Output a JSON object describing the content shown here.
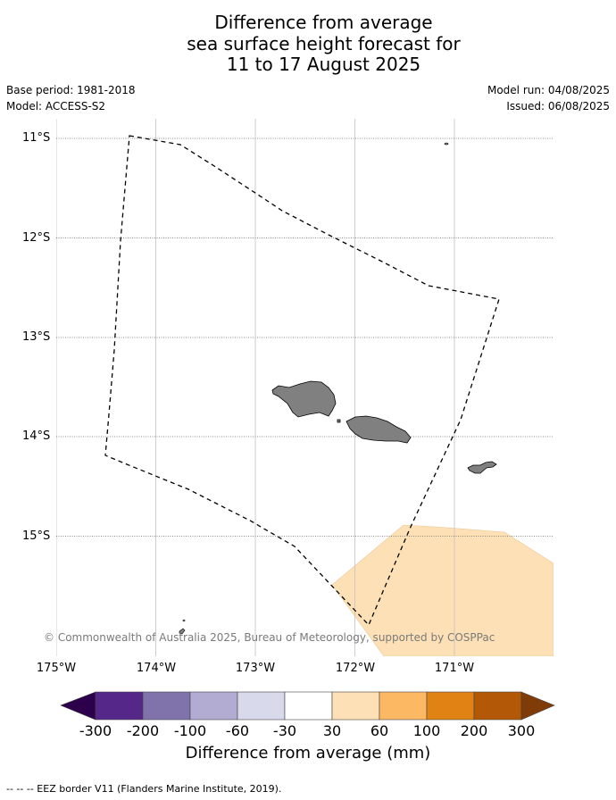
{
  "title": {
    "line1": "Difference from average",
    "line2": "sea surface height forecast for",
    "line3": "11 to 17 August 2025"
  },
  "meta": {
    "base_period": "Base period: 1981-2018",
    "model": "Model: ACCESS-S2",
    "model_run": "Model run: 04/08/2025",
    "issued": "Issued: 06/08/2025"
  },
  "map": {
    "lat_labels": [
      "11°S",
      "12°S",
      "13°S",
      "14°S",
      "15°S"
    ],
    "lon_labels": [
      "175°W",
      "174°W",
      "173°W",
      "172°W",
      "171°W"
    ],
    "land_color": "#808080",
    "anomaly_fill_color": "#fde0b6",
    "eez_border_style": "dashed",
    "copyright": "© Commonwealth of Australia 2025, Bureau of Meteorology, supported by COSPPac"
  },
  "colorbar": {
    "title": "Difference from average (mm)",
    "ticks": [
      "-300",
      "-200",
      "-100",
      "-60",
      "-30",
      "30",
      "60",
      "100",
      "200",
      "300"
    ],
    "colors": [
      "#2d004b",
      "#542788",
      "#8073ac",
      "#b2abd2",
      "#d8daeb",
      "#ffffff",
      "#fee0b6",
      "#fdb863",
      "#e08214",
      "#b35806",
      "#7f3b08"
    ]
  },
  "footnote": "--  --  -- EEZ border V11 (Flanders Marine Institute, 2019)."
}
